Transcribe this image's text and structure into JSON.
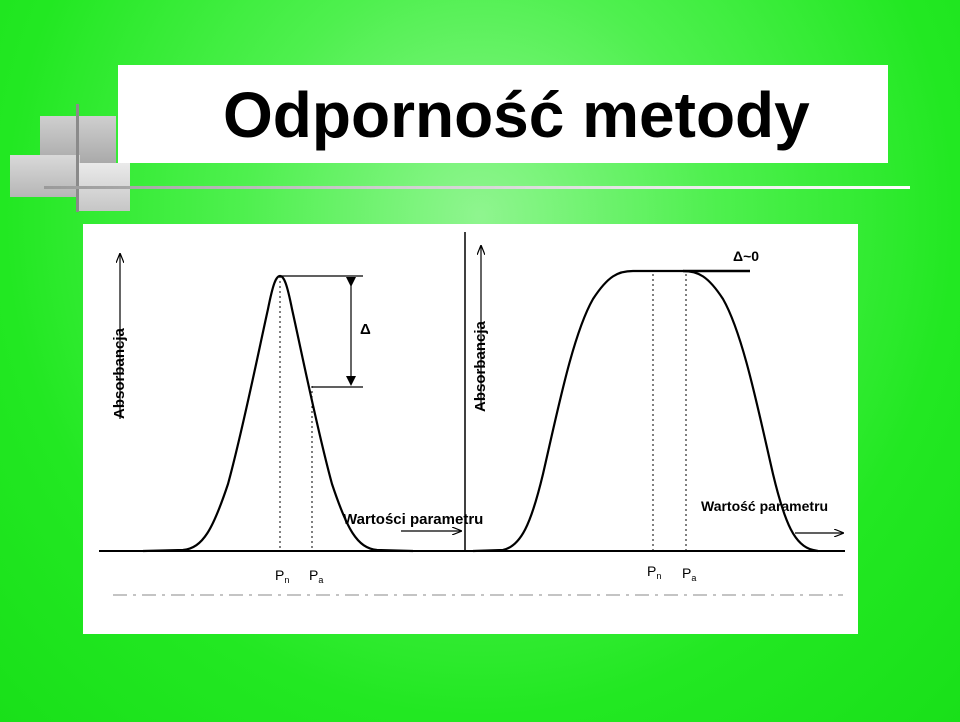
{
  "slide": {
    "title": "Odporność metody"
  },
  "figure": {
    "left": {
      "ylabel": "Absorbancja",
      "xlabel": "Wartości parametru",
      "delta_label": "Δ",
      "pn_main": "P",
      "pn_sub": "n",
      "pa_main": "P",
      "pa_sub": "a"
    },
    "right": {
      "ylabel": "Absorbancja",
      "xlabel": "Wartość parametru",
      "delta_label": "Δ~0",
      "pn_main": "P",
      "pn_sub": "n",
      "pa_main": "P",
      "pa_sub": "a"
    }
  }
}
